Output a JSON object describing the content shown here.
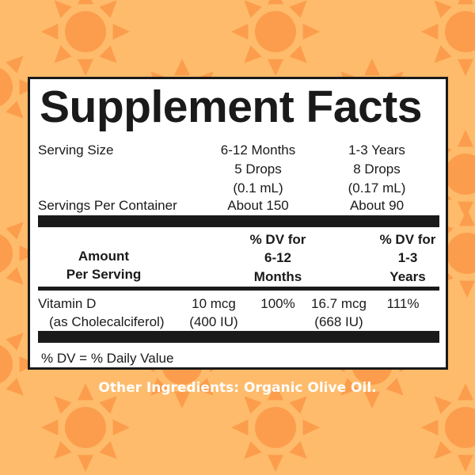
{
  "colors": {
    "background": "#fdbb6b",
    "sun": "#fb9d4c",
    "panel": "#ffffff",
    "ink": "#1a1a1a"
  },
  "background_icon": "sun-icon",
  "label": {
    "title": "Supplement Facts",
    "serving_size_label": "Serving Size",
    "servings_per_container_label": "Servings Per Container",
    "groups": [
      {
        "age": "6-12 Months",
        "drops": "5 Drops",
        "volume": "(0.1 mL)",
        "servings": "About 150"
      },
      {
        "age": "1-3 Years",
        "drops": "8 Drops",
        "volume": "(0.17 mL)",
        "servings": "About 90"
      }
    ],
    "header": {
      "amount_line1": "Amount",
      "amount_line2": "Per Serving",
      "dv1": [
        "% DV for",
        "6-12",
        "Months"
      ],
      "dv2": [
        "% DV for",
        "1-3",
        "Years"
      ]
    },
    "row": {
      "name": "Vitamin D",
      "form": "(as Cholecalciferol)",
      "amount1": "10 mcg",
      "amount1_iu": "(400 IU)",
      "dv1": "100%",
      "amount2": "16.7 mcg",
      "amount2_iu": "(668 IU)",
      "dv2": "111%"
    },
    "footnote": "% DV = % Daily Value"
  },
  "other_ingredients": "Other Ingredients: Organic Olive Oil."
}
